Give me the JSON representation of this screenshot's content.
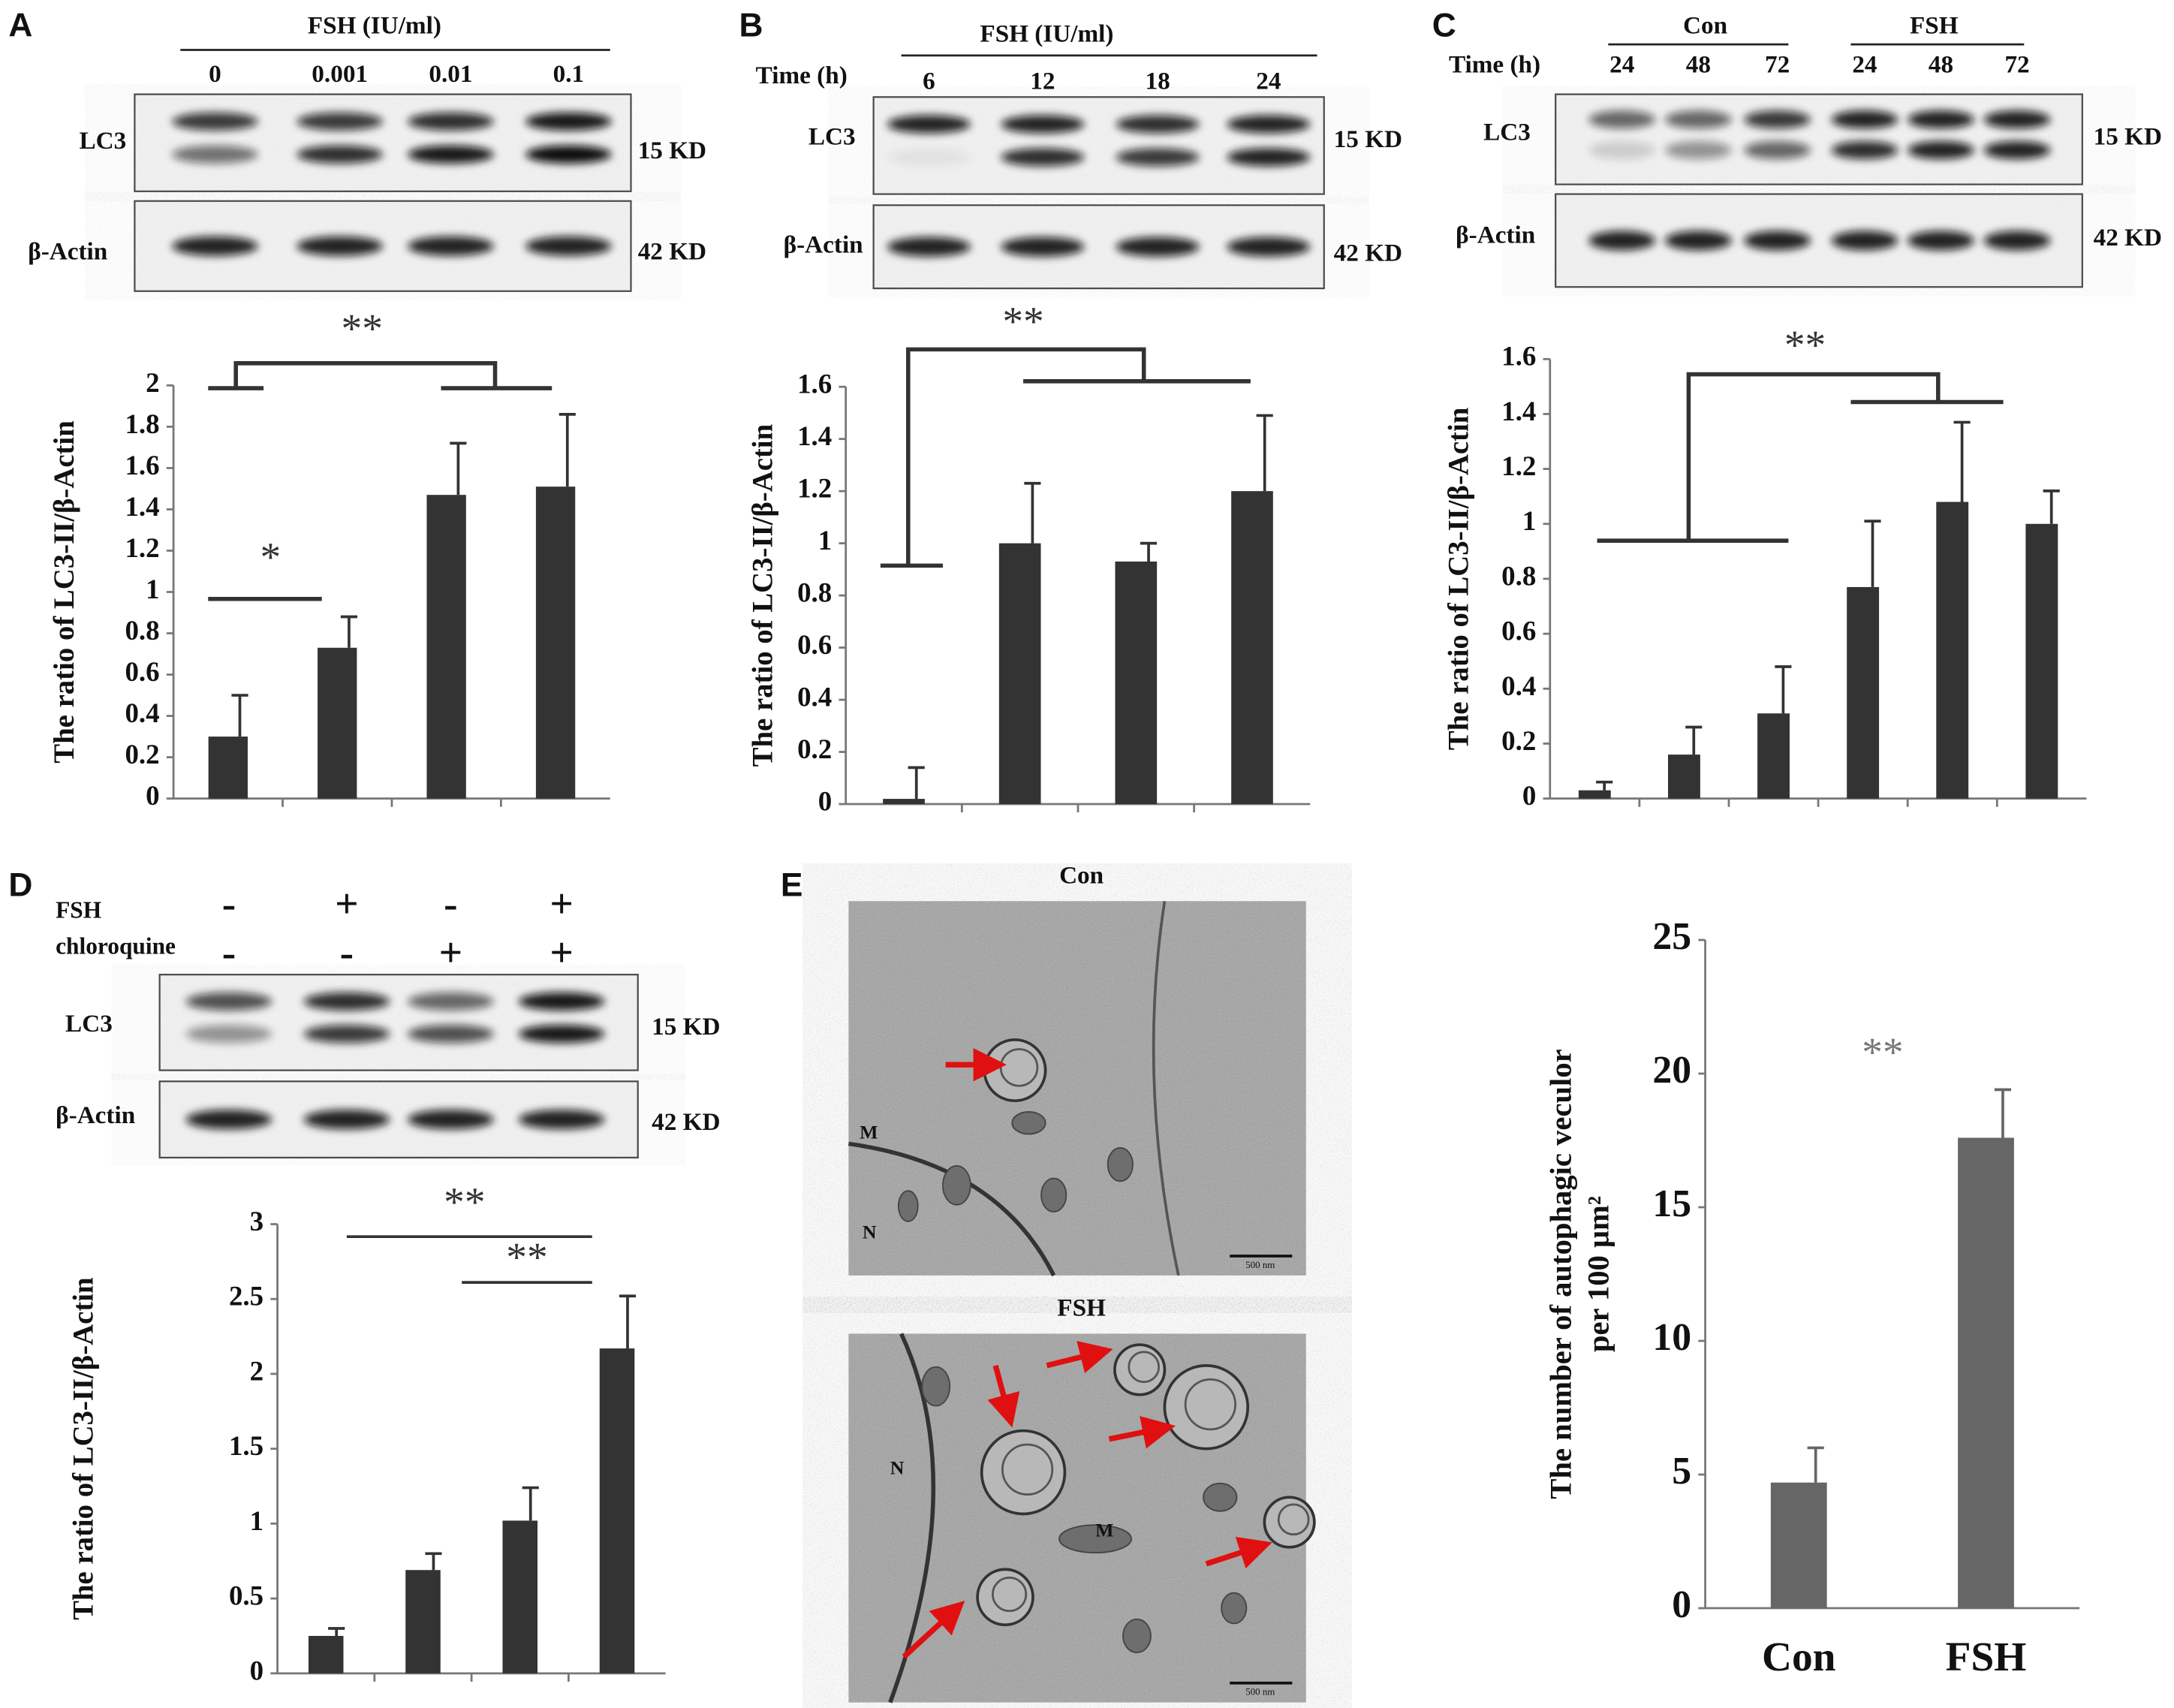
{
  "chart_data": [
    {
      "type": "bar",
      "y_label": "The ratio of LC3-II/β-Actin",
      "categories": [
        null,
        null,
        null,
        null
      ],
      "values": [
        0.3,
        0.73,
        1.47,
        1.51
      ],
      "errors": [
        0.2,
        0.15,
        0.25,
        0.35
      ],
      "color": "#333333",
      "ylim": [
        0,
        2
      ],
      "yticks": [
        0,
        0.2,
        0.4,
        0.6,
        0.8,
        1,
        1.2,
        1.4,
        1.6,
        1.8,
        2
      ],
      "annotations": [
        "**",
        "*"
      ]
    },
    {
      "type": "bar",
      "y_label": "The ratio of LC3-II/β-Actin",
      "categories": [
        null,
        null,
        null,
        null
      ],
      "values": [
        0.02,
        1.0,
        0.93,
        1.2
      ],
      "errors": [
        0.12,
        0.23,
        0.07,
        0.29
      ],
      "color": "#333333",
      "ylim": [
        0,
        1.6
      ],
      "yticks": [
        0,
        0.2,
        0.4,
        0.6,
        0.8,
        1,
        1.2,
        1.4,
        1.6
      ],
      "annotations": [
        "**"
      ]
    },
    {
      "type": "bar",
      "y_label": "The ratio of LC3-II/β-Actin",
      "categories": [
        null,
        null,
        null,
        null,
        null,
        null
      ],
      "values": [
        0.03,
        0.16,
        0.31,
        0.77,
        1.08,
        1.0
      ],
      "errors": [
        0.03,
        0.1,
        0.17,
        0.24,
        0.29,
        0.12
      ],
      "color": "#333333",
      "ylim": [
        0,
        1.6
      ],
      "yticks": [
        0,
        0.2,
        0.4,
        0.6,
        0.8,
        1,
        1.2,
        1.4,
        1.6
      ],
      "annotations": [
        "**"
      ]
    },
    {
      "type": "bar",
      "y_label": "The ratio of LC3-II/β-Actin",
      "categories": [
        null,
        null,
        null,
        null
      ],
      "values": [
        0.25,
        0.69,
        1.02,
        2.17
      ],
      "errors": [
        0.05,
        0.11,
        0.22,
        0.35
      ],
      "color": "#333333",
      "ylim": [
        0,
        3
      ],
      "yticks": [
        0,
        0.5,
        1,
        1.5,
        2,
        2.5,
        3
      ],
      "annotations": [
        "**",
        "**"
      ]
    },
    {
      "type": "bar",
      "y_label": [
        "The number of autophagic veculor",
        "per 100 μm²"
      ],
      "categories": [
        "Con",
        "FSH"
      ],
      "values": [
        4.7,
        17.6
      ],
      "errors": [
        1.3,
        1.8
      ],
      "color": "#666666",
      "ylim": [
        0,
        25
      ],
      "yticks": [
        0,
        5,
        10,
        15,
        20,
        25
      ],
      "annotations": [
        "**"
      ]
    }
  ],
  "blots": [
    {
      "panel": "A",
      "header": "FSH (IU/ml)",
      "lanes": [
        "0",
        "0.001",
        "0.01",
        "0.1"
      ],
      "rows": [
        "LC3",
        "β-Actin"
      ],
      "sizes": [
        "15 KD",
        "42 KD"
      ]
    },
    {
      "panel": "B",
      "header": "FSH (IU/ml)",
      "time_label": "Time (h)",
      "lanes": [
        "6",
        "12",
        "18",
        "24"
      ],
      "rows": [
        "LC3",
        "β-Actin"
      ],
      "sizes": [
        "15 KD",
        "42 KD"
      ]
    },
    {
      "panel": "C",
      "groups": [
        "Con",
        "FSH"
      ],
      "time_label": "Time (h)",
      "lanes": [
        "24",
        "48",
        "72",
        "24",
        "48",
        "72"
      ],
      "rows": [
        "LC3",
        "β-Actin"
      ],
      "sizes": [
        "15 KD",
        "42 KD"
      ]
    },
    {
      "panel": "D",
      "treatments": [
        {
          "name": "FSH",
          "signs": [
            "-",
            "+",
            "-",
            "+"
          ]
        },
        {
          "name": "chloroquine",
          "signs": [
            "-",
            "-",
            "+",
            "+"
          ]
        }
      ],
      "rows": [
        "LC3",
        "β-Actin"
      ],
      "sizes": [
        "15 KD",
        "42 KD"
      ]
    }
  ],
  "micrographs": {
    "panel": "E",
    "images": [
      {
        "title": "Con",
        "labels": [
          "M",
          "N"
        ],
        "scale_bar": "500 nm"
      },
      {
        "title": "FSH",
        "labels": [
          "N",
          "M"
        ],
        "scale_bar": "500 nm"
      }
    ]
  }
}
